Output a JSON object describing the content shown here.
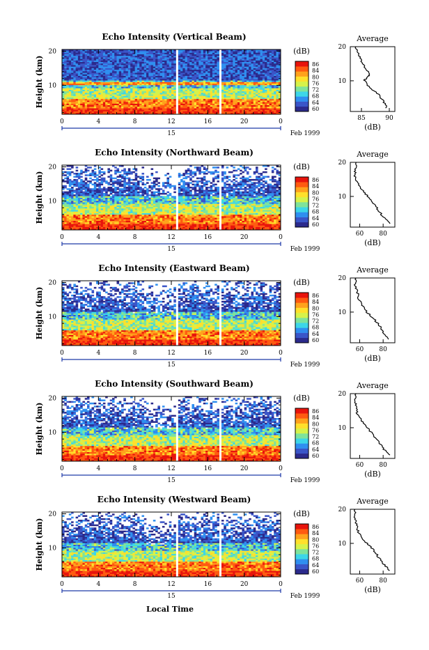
{
  "figure": {
    "bottom_label": "Local Time"
  },
  "colors": {
    "colormap": [
      "#2b2a8c",
      "#3a55c8",
      "#2f8ff0",
      "#3dd6e8",
      "#7fe39b",
      "#d6f24a",
      "#ffe02b",
      "#ffa21c",
      "#ff5a10",
      "#e8140c"
    ],
    "axis": "#000000",
    "date_bar": "#1f3aa8",
    "line": "#000000"
  },
  "chart_data": [
    {
      "type": "heatmap",
      "title": "Echo Intensity (Vertical Beam)",
      "ylabel": "Height (km)",
      "x_ticks": [
        "0",
        "4",
        "8",
        "12",
        "16",
        "20",
        "0"
      ],
      "y_ticks": [
        "10",
        "20"
      ],
      "date_tick": "15",
      "date_label": "Feb 1999",
      "xlim": [
        0,
        24
      ],
      "ylim": [
        1.5,
        20.5
      ],
      "colorbar": {
        "label": "(dB)",
        "ticks": [
          "86",
          "84",
          "80",
          "76",
          "72",
          "68",
          "64",
          "60"
        ],
        "range": [
          60,
          88
        ]
      },
      "gaps": [
        12.6,
        17.3
      ],
      "profile": {
        "title": "Average",
        "xlabel": "(dB)",
        "x_ticks": [
          "85",
          "90"
        ],
        "xlim": [
          83,
          91
        ],
        "y_ticks": [
          "10",
          "20"
        ],
        "heights": [
          2,
          4,
          6,
          8,
          10,
          11,
          12,
          14,
          16,
          18,
          20
        ],
        "values": [
          89.5,
          89,
          88,
          86.5,
          85.5,
          86,
          86.5,
          85.5,
          85,
          84.5,
          84
        ]
      }
    },
    {
      "type": "heatmap",
      "title": "Echo Intensity (Northward Beam)",
      "ylabel": "Height (km)",
      "x_ticks": [
        "0",
        "4",
        "8",
        "12",
        "16",
        "20",
        "0"
      ],
      "y_ticks": [
        "10",
        "20"
      ],
      "date_tick": "15",
      "date_label": "Feb 1999",
      "xlim": [
        0,
        24
      ],
      "ylim": [
        1.5,
        20.5
      ],
      "colorbar": {
        "label": "(dB)",
        "ticks": [
          "86",
          "84",
          "80",
          "76",
          "72",
          "68",
          "64",
          "60"
        ],
        "range": [
          60,
          88
        ]
      },
      "gaps": [
        12.6,
        17.3
      ],
      "profile": {
        "title": "Average",
        "xlabel": "(dB)",
        "x_ticks": [
          "60",
          "80"
        ],
        "xlim": [
          52,
          90
        ],
        "y_ticks": [
          "10",
          "20"
        ],
        "heights": [
          2,
          4,
          6,
          8,
          10,
          12,
          14,
          16,
          18,
          20
        ],
        "values": [
          86,
          80,
          76,
          72,
          67,
          62,
          58,
          56,
          56,
          57
        ]
      }
    },
    {
      "type": "heatmap",
      "title": "Echo Intensity (Eastward Beam)",
      "ylabel": "Height (km)",
      "x_ticks": [
        "0",
        "4",
        "8",
        "12",
        "16",
        "20",
        "0"
      ],
      "y_ticks": [
        "10",
        "20"
      ],
      "date_tick": "15",
      "date_label": "Feb 1999",
      "xlim": [
        0,
        24
      ],
      "ylim": [
        1.5,
        20.5
      ],
      "colorbar": {
        "label": "(dB)",
        "ticks": [
          "86",
          "84",
          "80",
          "76",
          "72",
          "68",
          "64",
          "60"
        ],
        "range": [
          60,
          88
        ]
      },
      "gaps": [
        12.6,
        17.3
      ],
      "profile": {
        "title": "Average",
        "xlabel": "(dB)",
        "x_ticks": [
          "60",
          "80"
        ],
        "xlim": [
          52,
          90
        ],
        "y_ticks": [
          "10",
          "20"
        ],
        "heights": [
          2,
          4,
          6,
          8,
          10,
          12,
          14,
          16,
          18,
          20
        ],
        "values": [
          84,
          80,
          77,
          72,
          66,
          62,
          59,
          58,
          56,
          57
        ]
      }
    },
    {
      "type": "heatmap",
      "title": "Echo Intensity (Southward Beam)",
      "ylabel": "Height (km)",
      "x_ticks": [
        "0",
        "4",
        "8",
        "12",
        "16",
        "20",
        "0"
      ],
      "y_ticks": [
        "10",
        "20"
      ],
      "date_tick": "15",
      "date_label": "Feb 1999",
      "xlim": [
        0,
        24
      ],
      "ylim": [
        1.5,
        20.5
      ],
      "colorbar": {
        "label": "(dB)",
        "ticks": [
          "86",
          "84",
          "80",
          "76",
          "72",
          "68",
          "64",
          "60"
        ],
        "range": [
          60,
          88
        ]
      },
      "gaps": [
        12.6,
        17.3
      ],
      "profile": {
        "title": "Average",
        "xlabel": "(dB)",
        "x_ticks": [
          "60",
          "80"
        ],
        "xlim": [
          52,
          90
        ],
        "y_ticks": [
          "10",
          "20"
        ],
        "heights": [
          2,
          4,
          6,
          8,
          10,
          12,
          14,
          16,
          18,
          20
        ],
        "values": [
          85,
          80,
          76,
          71,
          67,
          62,
          58,
          57,
          56,
          57
        ]
      }
    },
    {
      "type": "heatmap",
      "title": "Echo Intensity (Westward Beam)",
      "ylabel": "Height (km)",
      "x_ticks": [
        "0",
        "4",
        "8",
        "12",
        "16",
        "20",
        "0"
      ],
      "y_ticks": [
        "10",
        "20"
      ],
      "date_tick": "15",
      "date_label": "Feb 1999",
      "xlim": [
        0,
        24
      ],
      "ylim": [
        1.5,
        20.5
      ],
      "colorbar": {
        "label": "(dB)",
        "ticks": [
          "86",
          "84",
          "80",
          "76",
          "72",
          "68",
          "64",
          "60"
        ],
        "range": [
          60,
          88
        ]
      },
      "gaps": [
        12.6,
        17.3
      ],
      "profile": {
        "title": "Average",
        "xlabel": "(dB)",
        "x_ticks": [
          "60",
          "80"
        ],
        "xlim": [
          52,
          90
        ],
        "y_ticks": [
          "10",
          "20"
        ],
        "heights": [
          2,
          4,
          6,
          8,
          10,
          12,
          14,
          16,
          18,
          20
        ],
        "values": [
          86,
          80,
          76,
          72,
          66,
          61,
          58,
          57,
          56,
          56
        ]
      }
    }
  ]
}
